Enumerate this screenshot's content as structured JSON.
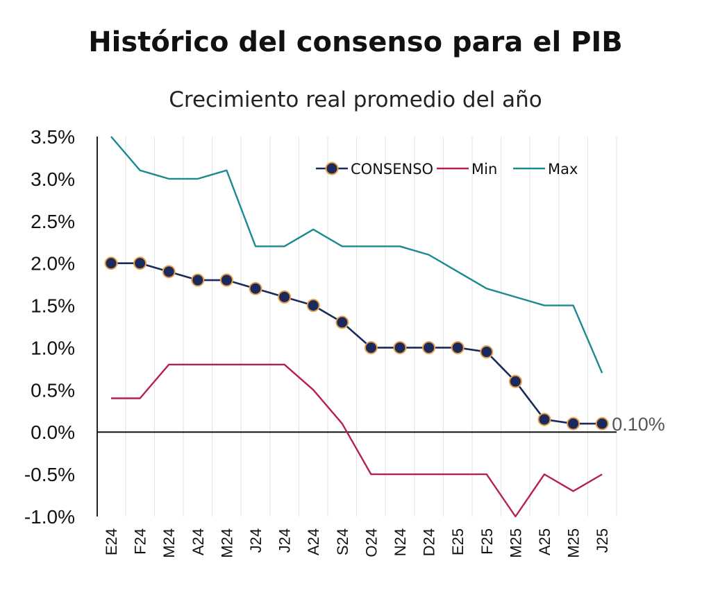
{
  "chart_data": {
    "type": "line",
    "title": "Histórico del consenso para el PIB",
    "subtitle": "Crecimiento real promedio del año",
    "categories": [
      "E24",
      "F24",
      "M24",
      "A24",
      "M24",
      "J24",
      "J24",
      "A24",
      "S24",
      "O24",
      "N24",
      "D24",
      "E25",
      "F25",
      "M25",
      "A25",
      "M25",
      "J25"
    ],
    "y_tick_labels": [
      "-1.0%",
      "-0.5%",
      "0.0%",
      "0.5%",
      "1.0%",
      "1.5%",
      "2.0%",
      "2.5%",
      "3.0%",
      "3.5%"
    ],
    "ylim": [
      -1.0,
      3.5
    ],
    "grid": "vertical",
    "legend_position": "top-right",
    "series": [
      {
        "name": "CONSENSO",
        "color": "#1b2a5c",
        "marker": "circle",
        "marker_edge": "#e8a04a",
        "values": [
          2.0,
          2.0,
          1.9,
          1.8,
          1.8,
          1.7,
          1.6,
          1.5,
          1.3,
          1.0,
          1.0,
          1.0,
          1.0,
          0.95,
          0.6,
          0.15,
          0.1,
          0.1
        ]
      },
      {
        "name": "Min",
        "color": "#b5214b",
        "values": [
          0.4,
          0.4,
          0.8,
          0.8,
          0.8,
          0.8,
          0.8,
          0.5,
          0.1,
          -0.5,
          -0.5,
          -0.5,
          -0.5,
          -0.5,
          -1.0,
          -0.5,
          -0.7,
          -0.5
        ]
      },
      {
        "name": "Max",
        "color": "#1a8a8f",
        "values": [
          3.5,
          3.1,
          3.0,
          3.0,
          3.1,
          2.2,
          2.2,
          2.4,
          2.2,
          2.2,
          2.2,
          2.1,
          1.9,
          1.7,
          1.6,
          1.5,
          1.5,
          0.7
        ]
      }
    ],
    "annotations": [
      {
        "text": "0.10%"
      }
    ]
  }
}
